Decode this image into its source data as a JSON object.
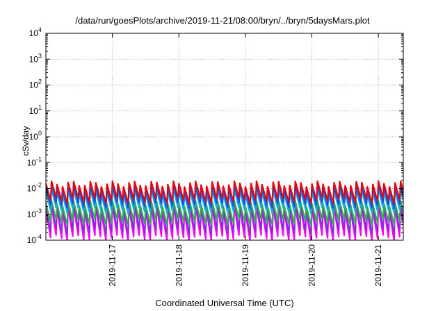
{
  "chart_data": {
    "type": "line",
    "title": "/data/run/goesPlots/archive/2019-11-21/08:00/bryn/../bryn/5daysMars.plot",
    "xlabel": "Coordinated Universal Time (UTC)",
    "ylabel": "cSv/day",
    "yscale": "log",
    "ylim": [
      0.0001,
      10000
    ],
    "ytick_labels": [
      {
        "base": "10",
        "exp": "-4"
      },
      {
        "base": "10",
        "exp": "-3"
      },
      {
        "base": "10",
        "exp": "-2"
      },
      {
        "base": "10",
        "exp": "-1"
      },
      {
        "base": "10",
        "exp": "0"
      },
      {
        "base": "10",
        "exp": "1"
      },
      {
        "base": "10",
        "exp": "2"
      },
      {
        "base": "10",
        "exp": "3"
      },
      {
        "base": "10",
        "exp": "4"
      }
    ],
    "xlim": [
      "2019-11-16T00:00",
      "2019-11-21T09:00"
    ],
    "xtick_labels": [
      "2019-11-17",
      "2019-11-18",
      "2019-11-19",
      "2019-11-20",
      "2019-11-21"
    ],
    "grid": true,
    "legend": "none",
    "sawtooth_period_hours": 2,
    "series": [
      {
        "color": "#e8000b",
        "peak": 0.016,
        "trough": 0.0035
      },
      {
        "color": "#1f4fd6",
        "peak": 0.011,
        "trough": 0.0022
      },
      {
        "color": "#18a8e8",
        "peak": 0.0075,
        "trough": 0.0014
      },
      {
        "color": "#2bb14a",
        "peak": 0.0028,
        "trough": 0.0005
      },
      {
        "color": "#8a2be2",
        "peak": 0.0022,
        "trough": 0.00022
      },
      {
        "color": "#ff00ff",
        "peak": 0.0016,
        "trough": 0.00012
      }
    ]
  }
}
